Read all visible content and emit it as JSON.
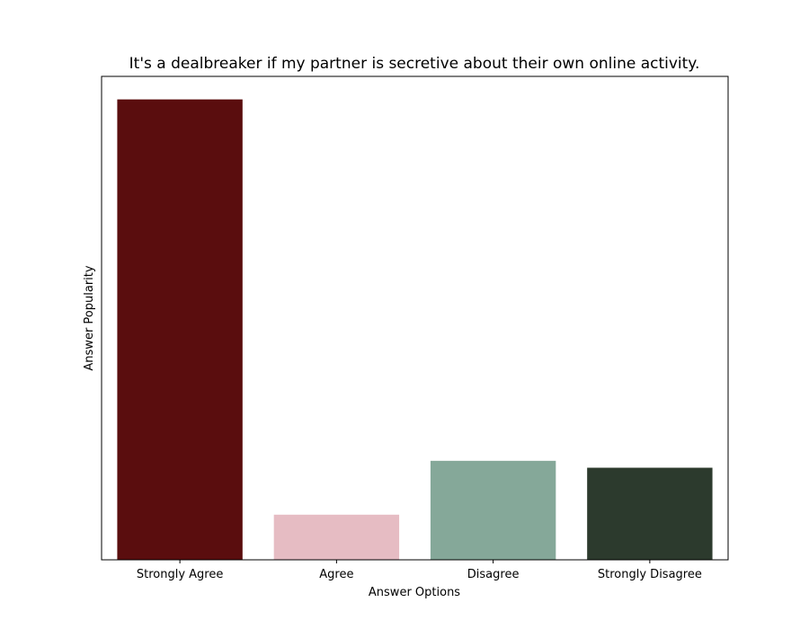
{
  "chart_data": {
    "type": "bar",
    "title": "It's a dealbreaker if my partner is secretive about their own online activity.",
    "xlabel": "Answer Options",
    "ylabel": "Answer Popularity",
    "categories": [
      "Strongly Agree",
      "Agree",
      "Disagree",
      "Strongly Disagree"
    ],
    "values": [
      100,
      9.8,
      21.5,
      20.0
    ],
    "colors": [
      "#5a0d0e",
      "#e6bcc3",
      "#85a899",
      "#2c3a2d"
    ],
    "ylim": [
      0,
      105
    ],
    "y_ticks_shown": false,
    "grid": false,
    "legend": "none"
  }
}
